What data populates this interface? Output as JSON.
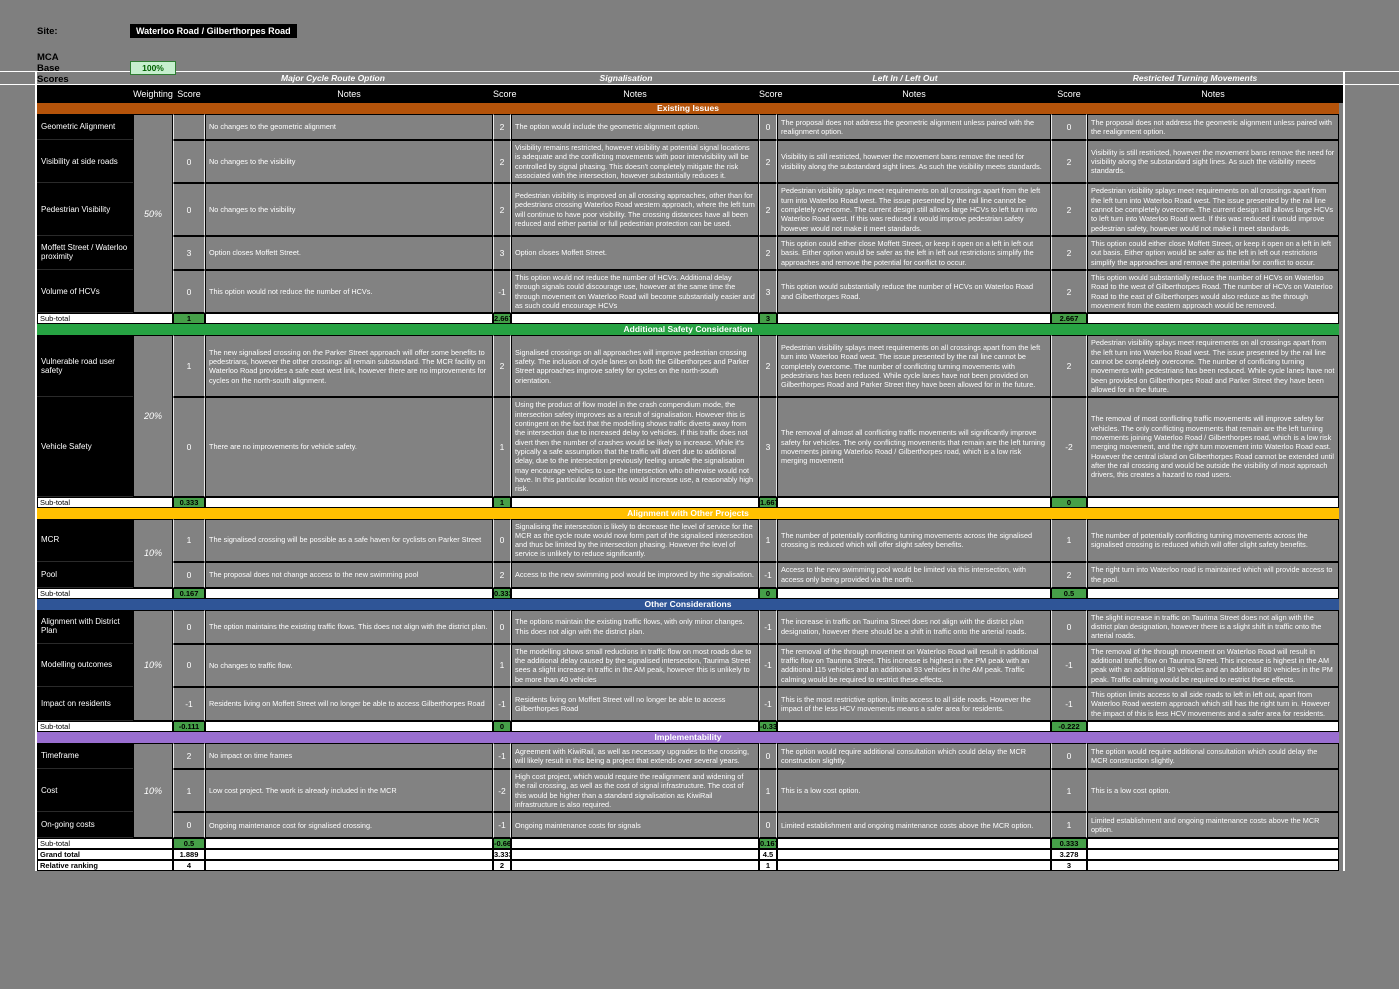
{
  "app": {
    "site_label": "Site:",
    "site_value": "Waterloo Road / Gilberthorpes Road",
    "mca_label": "MCA",
    "base_scores_label": "Base Scores",
    "base_scores_value": "100%"
  },
  "table": {
    "column_headers": {
      "weighting": "Weighting",
      "score": "Score",
      "notes": "Notes"
    },
    "options": [
      "Major Cycle Route Option",
      "Signalisation",
      "Left In / Left Out",
      "Restricted Turning Movements"
    ],
    "subtotal_label": "Sub-total",
    "sections": [
      {
        "title": "Existing Issues",
        "color": "#b4530a",
        "weighting": "50%",
        "rows": [
          {
            "criterion": "Geometric Alignment",
            "cells": [
              {
                "score": "",
                "note": "No changes to the geometric alignment"
              },
              {
                "score": "2",
                "note": "The option would include the geometric alignment option."
              },
              {
                "score": "0",
                "note": "The proposal does not address the geometric alignment unless paired with the realignment option."
              },
              {
                "score": "0",
                "note": "The proposal does not address the geometric alignment unless paired with the realignment option."
              }
            ]
          },
          {
            "criterion": "Visibility at side roads",
            "cells": [
              {
                "score": "0",
                "note": "No changes to the visibility"
              },
              {
                "score": "2",
                "note": "Visibility remains restricted, however visibility at potential signal locations is adequate and the conflicting movements with poor intervisibility will be controlled by signal phasing. This doesn't completely mitigate the risk associated with the intersection, however substantially reduces it."
              },
              {
                "score": "2",
                "note": "Visibility is still restricted, however the movement bans remove the need for visibility along the substandard sight lines. As such the visibility meets standards."
              },
              {
                "score": "2",
                "note": "Visibility is still restricted, however the movement bans remove the need for visibility along the substandard sight lines. As such the visibility meets standards."
              }
            ]
          },
          {
            "criterion": "Pedestrian Visibility",
            "cells": [
              {
                "score": "0",
                "note": "No changes to the visibility"
              },
              {
                "score": "2",
                "note": "Pedestrian visibility is improved on all crossing approaches, other than for pedestrians crossing Waterloo Road western approach, where the left turn will continue to have poor visibility. The crossing distances have all been reduced and either partial or full pedestrian protection can be used."
              },
              {
                "score": "2",
                "note": "Pedestrian visibility splays meet requirements on all crossings apart from the left turn into Waterloo Road west. The issue presented by the rail line cannot be completely overcome. The current design still allows large HCVs to left turn into Waterloo Road west. If this was reduced it would improve pedestrian safety however would not make it meet standards."
              },
              {
                "score": "2",
                "note": "Pedestrian visibility splays meet requirements on all crossings apart from the left turn into Waterloo Road west. The issue presented by the rail line cannot be completely overcome. The current design still allows large HCVs to left turn into Waterloo Road west. If this was reduced it would improve pedestrian safety, however would not make it meet standards."
              }
            ]
          },
          {
            "criterion": "Moffett Street / Waterloo proximity",
            "cells": [
              {
                "score": "3",
                "note": "Option closes Moffett Street."
              },
              {
                "score": "3",
                "note": "Option closes Moffett Street."
              },
              {
                "score": "2",
                "note": "This option could either close Moffett Street, or keep it open on a left in left out basis. Either option would be safer as the left in left out restrictions simplify the approaches and remove the potential for conflict to occur."
              },
              {
                "score": "2",
                "note": "This option could either close Moffett Street, or keep it open on a left in left out basis. Either option would be safer as the left in left out restrictions simplify the approaches and remove the potential for conflict to occur."
              }
            ]
          },
          {
            "criterion": "Volume of HCVs",
            "cells": [
              {
                "score": "0",
                "note": "This option would not reduce the number of HCVs."
              },
              {
                "score": "-1",
                "note": "This option would not reduce the number of HCVs. Additional delay through signals could discourage use, however at the same time the through movement on Waterloo Road will become substantially easier and as such could encourage HCVs"
              },
              {
                "score": "3",
                "note": "This option would substantially reduce the number of HCVs on Waterloo Road and Gilberthorpes Road."
              },
              {
                "score": "2",
                "note": "This option would substantially reduce the number of HCVs on Waterloo Road to the west of Gilberthorpes Road. The number of HCVs on Waterloo Road to the east of Gilberthorpes would also reduce as the through movement from the eastern approach would be removed."
              }
            ]
          }
        ],
        "subtotals": [
          "1",
          "2.667",
          "3",
          "2.667"
        ]
      },
      {
        "title": "Additional Safety Consideration",
        "color": "#27a343",
        "weighting": "20%",
        "rows": [
          {
            "criterion": "Vulnerable road user safety",
            "cells": [
              {
                "score": "1",
                "note": "The new signalised crossing on the Parker Street approach will offer some benefits to pedestrians, however the other crossings all remain substandard. The MCR facility on Waterloo Road provides a safe east west link, however there are no improvements for cycles on the north-south alignment."
              },
              {
                "score": "2",
                "note": "Signalised crossings on all approaches will improve pedestrian crossing safety. The inclusion of cycle lanes on both the Gilberthorpes and Parker Street approaches improve safety for cycles on the north-south orientation."
              },
              {
                "score": "2",
                "note": "Pedestrian visibility splays meet requirements on all crossings apart from the left turn into Waterloo Road west. The issue presented by the rail line cannot be completely overcome. The number of conflicting turning movements with pedestrians has been reduced. While cycle lanes have not been provided on Gilberthorpes Road and Parker Street they have been allowed for in the future."
              },
              {
                "score": "2",
                "note": "Pedestrian visibility splays meet requirements on all crossings apart from the left turn into Waterloo Road west. The issue presented by the rail line cannot be completely overcome. The number of conflicting turning movements with pedestrians has been reduced. While cycle lanes have not been provided on Gilberthorpes Road and Parker Street they have been allowed for in the future."
              }
            ]
          },
          {
            "criterion": "Vehicle Safety",
            "cells": [
              {
                "score": "0",
                "note": "There are no improvements for vehicle safety."
              },
              {
                "score": "1",
                "note": "Using the product of flow model in the crash compendium mode, the intersection safety improves as a result of signalisation. However this is contingent on the fact that the modelling shows traffic diverts away from the intersection due to increased delay to vehicles. If this traffic does not divert then the number of crashes would be likely to increase. While it's typically a safe assumption that the traffic will divert due to additional delay, due to the intersection previously feeling unsafe the signalisation may encourage vehicles to use the intersection who otherwise would not have. In this particular location this would increase use, a reasonably high risk."
              },
              {
                "score": "3",
                "note": "The removal of almost all conflicting traffic movements will significantly improve safety for vehicles. The only conflicting movements that remain are the left turning movements joining Waterloo Road / Gilberthorpes road, which is a low risk merging movement"
              },
              {
                "score": "-2",
                "note": "The removal of most conflicting traffic movements will improve safety for vehicles. The only conflicting movements that remain are the left turning movements joining Waterloo Road / Gilberthorpes road, which is a low risk merging movement, and the right turn movement into Waterloo Road east. However the central island on Gilberthorpes Road cannot be extended until after the rail crossing and would be outside the visibility of most approach drivers, this creates a hazard to road users."
              }
            ]
          }
        ],
        "subtotals": [
          "0.333",
          "1",
          "1.667",
          "0"
        ]
      },
      {
        "title": "Alignment with Other Projects",
        "color": "#ffc000",
        "weighting": "10%",
        "rows": [
          {
            "criterion": "MCR",
            "cells": [
              {
                "score": "1",
                "note": "The signalised crossing will be possible as a safe haven for cyclists on Parker Street"
              },
              {
                "score": "0",
                "note": "Signalising the intersection is likely to decrease the level of service for the MCR as the cycle route would now form part of the signalised intersection and thus be limited by the intersection phasing. However the level of service is unlikely to reduce significantly."
              },
              {
                "score": "1",
                "note": "The number of potentially conflicting turning movements across the signalised crossing is reduced which will offer slight safety benefits."
              },
              {
                "score": "1",
                "note": "The number of potentially conflicting turning movements across the signalised crossing is reduced which will offer slight safety benefits."
              }
            ]
          },
          {
            "criterion": "Pool",
            "cells": [
              {
                "score": "0",
                "note": "The proposal does not change access to the new swimming pool"
              },
              {
                "score": "2",
                "note": "Access to the new swimming pool would be improved by the signalisation."
              },
              {
                "score": "-1",
                "note": "Access to the new swimming pool would be limited via this intersection, with access only being provided via the north."
              },
              {
                "score": "2",
                "note": "The right turn into Waterloo road is maintained which will provide access to the pool."
              }
            ]
          }
        ],
        "subtotals": [
          "0.167",
          "0.333",
          "0",
          "0.5"
        ]
      },
      {
        "title": "Other Considerations",
        "color": "#2f5597",
        "weighting": "10%",
        "rows": [
          {
            "criterion": "Alignment with District Plan",
            "cells": [
              {
                "score": "0",
                "note": "The option maintains the existing traffic flows. This does not align with the district plan."
              },
              {
                "score": "0",
                "note": "The options maintain the existing traffic flows, with only minor changes. This does not align with the district plan."
              },
              {
                "score": "-1",
                "note": "The increase in traffic on Taurima Street does not align with the district plan designation, however there should be a shift in traffic onto the arterial roads."
              },
              {
                "score": "0",
                "note": "The slight increase in traffic on Taurima Street does not align with the district plan designation, however there is a slight shift in traffic onto the arterial roads."
              }
            ]
          },
          {
            "criterion": "Modelling outcomes",
            "cells": [
              {
                "score": "0",
                "note": "No changes to traffic flow."
              },
              {
                "score": "1",
                "note": "The modelling shows small reductions in traffic flow on most roads due to the additional delay caused by the signalised intersection, Taurima Street sees a slight increase in traffic in the AM peak, however this is unlikely to be more than 40 vehicles"
              },
              {
                "score": "-1",
                "note": "The removal of the through movement on Waterloo Road will result in additional traffic flow on Taurima Street. This increase is highest in the PM peak with an additional 115 vehicles and an additional 93 vehicles in the AM peak. Traffic calming would be required to restrict these effects."
              },
              {
                "score": "-1",
                "note": "The removal of the through movement on Waterloo Road will result in additional traffic flow on Taurima Street. This increase is highest in the AM peak with an additional 90 vehicles and an additional 80 vehicles in the PM peak. Traffic calming would be required to restrict these effects."
              }
            ]
          },
          {
            "criterion": "Impact on residents",
            "cells": [
              {
                "score": "-1",
                "note": "Residents living on Moffett Street will no longer be able to access Gilberthorpes Road"
              },
              {
                "score": "-1",
                "note": "Residents living on Moffett Street will no longer be able to access Gilberthorpes Road"
              },
              {
                "score": "-1",
                "note": "This is the most restrictive option, limits access to all side roads. However the impact of the less HCV movements means a safer area for residents."
              },
              {
                "score": "-1",
                "note": "This option limits access to all side roads to left in left out, apart from Waterloo Road western approach which still has the right turn in. However the impact of this is less HCV movements and a safer area for residents."
              }
            ]
          }
        ],
        "subtotals": [
          "-0.111",
          "0",
          "-0.333",
          "-0.222"
        ]
      },
      {
        "title": "Implementability",
        "color": "#9a6fd0",
        "weighting": "10%",
        "rows": [
          {
            "criterion": "Timeframe",
            "cells": [
              {
                "score": "2",
                "note": "No impact on time frames"
              },
              {
                "score": "-1",
                "note": "Agreement with KiwiRail, as well as necessary upgrades to the crossing, will likely result in this being a project that extends over several years."
              },
              {
                "score": "0",
                "note": "The option would require additional consultation which could delay the MCR construction slightly."
              },
              {
                "score": "0",
                "note": "The option would require additional consultation which could delay the MCR construction slightly."
              }
            ]
          },
          {
            "criterion": "Cost",
            "cells": [
              {
                "score": "1",
                "note": "Low cost project. The work is already included in the MCR"
              },
              {
                "score": "-2",
                "note": "High cost project, which would require the realignment and widening of the rail crossing, as well as the cost of signal infrastructure. The cost of this would be higher than a standard signalisation as KiwiRail infrastructure is also required."
              },
              {
                "score": "1",
                "note": "This is a low cost option."
              },
              {
                "score": "1",
                "note": "This is a low cost option."
              }
            ]
          },
          {
            "criterion": "On-going costs",
            "cells": [
              {
                "score": "0",
                "note": "Ongoing maintenance cost for signalised crossing."
              },
              {
                "score": "-1",
                "note": "Ongoing maintenance costs for signals"
              },
              {
                "score": "0",
                "note": "Limited establishment and ongoing maintenance costs above the MCR option."
              },
              {
                "score": "1",
                "note": "Limited establishment and ongoing maintenance costs above the MCR option."
              }
            ]
          }
        ],
        "subtotals": [
          "0.5",
          "-0.667",
          "0.167",
          "0.333"
        ]
      }
    ],
    "totals": {
      "grand_label": "Grand total",
      "grand": [
        "1.889",
        "3.333",
        "4.5",
        "3.278"
      ],
      "ranking_label": "Relative ranking",
      "ranking": [
        "4",
        "2",
        "1",
        "3"
      ]
    }
  }
}
